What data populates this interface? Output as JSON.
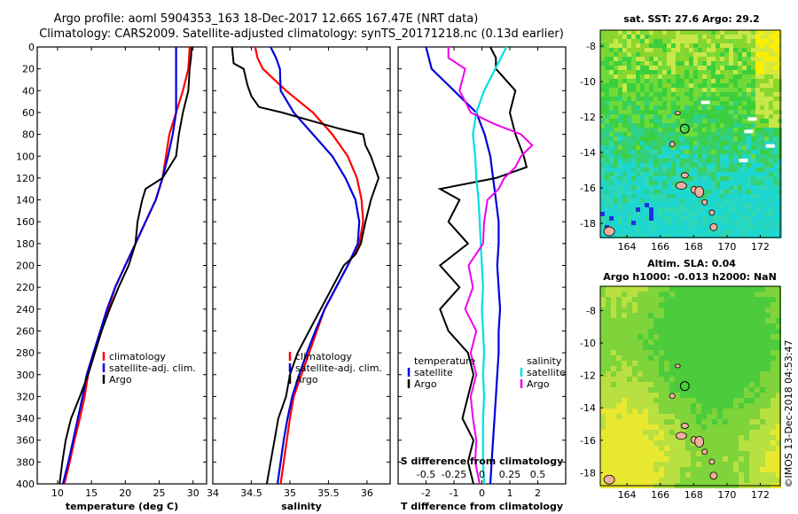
{
  "title": {
    "line1": "Argo profile: aoml 5904353_163 18-Dec-2017 12.66S 167.47E (NRT data)",
    "line2": "Climatology: CARS2009. Satellite-adjusted climatology: synTS_20171218.nc (0.13d earlier)"
  },
  "colors": {
    "climatology": "#ff0000",
    "satellite": "#0000dd",
    "argo": "#000000",
    "sat_salinity": "#00e0e0",
    "argo_salinity": "#ee00ee"
  },
  "chart_data": [
    {
      "type": "line",
      "id": "temperature",
      "xlabel": "temperature (deg C)",
      "ylabel": "",
      "xlim": [
        7,
        32
      ],
      "ylim": [
        400,
        0
      ],
      "xticks": [
        10,
        15,
        20,
        25,
        30
      ],
      "yticks": [
        0,
        20,
        40,
        60,
        80,
        100,
        120,
        140,
        160,
        180,
        200,
        220,
        240,
        260,
        280,
        300,
        320,
        340,
        360,
        380,
        400
      ],
      "legend": [
        "climatology",
        "satellite-adj. clim.",
        "Argo"
      ],
      "series": [
        {
          "name": "climatology",
          "color": "#ff0000",
          "depth": [
            0,
            20,
            40,
            60,
            80,
            100,
            120,
            140,
            160,
            180,
            200,
            220,
            240,
            260,
            280,
            300,
            320,
            340,
            360,
            380,
            400
          ],
          "values": [
            29.5,
            29.3,
            28.5,
            27.5,
            26.5,
            26,
            25.5,
            24.5,
            23,
            21.5,
            20,
            18.5,
            17.5,
            16.5,
            15.5,
            14.5,
            14,
            13.3,
            12.5,
            11.8,
            11
          ]
        },
        {
          "name": "satellite-adj. clim.",
          "color": "#0000dd",
          "depth": [
            0,
            20,
            40,
            60,
            80,
            100,
            120,
            140,
            160,
            180,
            200,
            220,
            240,
            260,
            280,
            300,
            320,
            340,
            360,
            380,
            400
          ],
          "values": [
            27.5,
            27.5,
            27.5,
            27.5,
            27,
            26.3,
            25.5,
            24.5,
            23,
            21.5,
            20,
            18.5,
            17.3,
            16.3,
            15.3,
            14.3,
            13.7,
            13,
            12.3,
            11.6,
            10.8
          ]
        },
        {
          "name": "Argo",
          "color": "#000000",
          "depth": [
            0,
            10,
            20,
            40,
            60,
            70,
            80,
            100,
            120,
            130,
            140,
            160,
            180,
            200,
            220,
            240,
            260,
            280,
            300,
            320,
            340,
            360,
            380,
            400
          ],
          "values": [
            29.8,
            29.7,
            29.5,
            29.3,
            28.5,
            28.2,
            27.9,
            27.5,
            25.5,
            23,
            22.5,
            21.8,
            21.5,
            20.5,
            19,
            17.7,
            16.5,
            15.5,
            14.5,
            13.3,
            12,
            11.2,
            10.7,
            10.3
          ]
        }
      ]
    },
    {
      "type": "line",
      "id": "salinity",
      "xlabel": "salinity",
      "ylabel": "",
      "xlim": [
        34,
        36.3
      ],
      "ylim": [
        400,
        0
      ],
      "xticks": [
        34,
        34.5,
        35,
        35.5,
        36
      ],
      "yticks": [],
      "legend": [
        "climatology",
        "satellite-adj. clim.",
        "Argo"
      ],
      "series": [
        {
          "name": "climatology",
          "color": "#ff0000",
          "depth": [
            0,
            10,
            20,
            40,
            60,
            80,
            100,
            120,
            140,
            160,
            180,
            200,
            220,
            240,
            260,
            280,
            300,
            320,
            340,
            360,
            380,
            400
          ],
          "values": [
            34.55,
            34.58,
            34.65,
            34.95,
            35.3,
            35.55,
            35.75,
            35.87,
            35.93,
            35.95,
            35.9,
            35.75,
            35.6,
            35.45,
            35.35,
            35.25,
            35.15,
            35.05,
            35,
            34.96,
            34.92,
            34.88
          ]
        },
        {
          "name": "satellite-adj. clim.",
          "color": "#0000dd",
          "depth": [
            0,
            10,
            20,
            40,
            60,
            80,
            100,
            120,
            140,
            160,
            180,
            200,
            220,
            240,
            260,
            280,
            300,
            320,
            340,
            360,
            380,
            400
          ],
          "values": [
            34.75,
            34.82,
            34.87,
            34.88,
            35.05,
            35.3,
            35.55,
            35.72,
            35.85,
            35.9,
            35.88,
            35.75,
            35.6,
            35.45,
            35.33,
            35.22,
            35.12,
            35.03,
            34.97,
            34.92,
            34.88,
            34.84
          ]
        },
        {
          "name": "Argo",
          "color": "#000000",
          "depth": [
            0,
            15,
            20,
            35,
            45,
            55,
            60,
            70,
            75,
            80,
            90,
            100,
            110,
            120,
            130,
            140,
            160,
            170,
            180,
            190,
            200,
            220,
            240,
            260,
            280,
            300,
            320,
            340,
            360,
            380,
            400
          ],
          "values": [
            34.25,
            34.27,
            34.4,
            34.45,
            34.5,
            34.6,
            34.9,
            35.4,
            35.65,
            35.95,
            35.98,
            36.05,
            36.1,
            36.15,
            36.1,
            36.05,
            35.98,
            35.95,
            35.92,
            35.85,
            35.7,
            35.55,
            35.4,
            35.25,
            35.1,
            35.0,
            34.95,
            34.85,
            34.8,
            34.75,
            34.7
          ]
        }
      ]
    },
    {
      "type": "line",
      "id": "difference",
      "xlabel": "T difference from climatology",
      "xlabel2": "S difference from climatology",
      "xlim": [
        -3,
        3
      ],
      "xlim2": [
        -0.75,
        0.75
      ],
      "ylim": [
        400,
        0
      ],
      "xticks": [
        -2,
        -1,
        0,
        1,
        2
      ],
      "xticks2": [
        -0.5,
        -0.25,
        0,
        0.25,
        0.5
      ],
      "xtick_labels": [
        "-2",
        "-1",
        "0",
        "1",
        "2"
      ],
      "xtick_labels2": [
        "-0.5",
        "-0.25",
        "0",
        "0.25",
        "0.5"
      ],
      "legend_temperature": {
        "title": "temperature",
        "items": [
          "satellite",
          "Argo"
        ]
      },
      "legend_salinity": {
        "title": "salinity",
        "items": [
          "satellite",
          "Argo"
        ]
      },
      "series": [
        {
          "name": "temperature satellite",
          "color": "#0000dd",
          "axis": "T",
          "depth": [
            0,
            20,
            40,
            60,
            80,
            100,
            120,
            140,
            160,
            180,
            200,
            220,
            240,
            260,
            280,
            300,
            320,
            340,
            360,
            380,
            400
          ],
          "values": [
            -2,
            -1.8,
            -1,
            -0.2,
            0.1,
            0.3,
            0.4,
            0.5,
            0.6,
            0.6,
            0.55,
            0.6,
            0.65,
            0.6,
            0.6,
            0.55,
            0.5,
            0.45,
            0.4,
            0.35,
            0.3
          ]
        },
        {
          "name": "temperature Argo",
          "color": "#000000",
          "axis": "T",
          "depth": [
            0,
            10,
            20,
            40,
            60,
            80,
            100,
            110,
            120,
            130,
            140,
            160,
            180,
            200,
            220,
            240,
            260,
            280,
            300,
            320,
            340,
            360,
            380,
            400
          ],
          "values": [
            0.3,
            0.5,
            0.5,
            1.2,
            1,
            1.2,
            1.5,
            1.6,
            0.5,
            -1.5,
            -0.8,
            -1.2,
            -0.5,
            -1.5,
            -0.8,
            -1.5,
            -1.2,
            -0.5,
            -0.3,
            -0.5,
            -0.7,
            -0.3,
            -0.5,
            -0.3
          ]
        },
        {
          "name": "salinity satellite",
          "color": "#00e0e0",
          "axis": "S",
          "depth": [
            0,
            20,
            40,
            60,
            80,
            100,
            120,
            140,
            160,
            180,
            200,
            220,
            240,
            260,
            280,
            300,
            320,
            340,
            360,
            380,
            400
          ],
          "values": [
            0.22,
            0.12,
            0.02,
            -0.05,
            -0.08,
            -0.06,
            -0.05,
            -0.03,
            -0.02,
            -0.01,
            0,
            0.01,
            0,
            0.01,
            0.02,
            0.01,
            0.02,
            0.01,
            0.01,
            0.01,
            0.02
          ]
        },
        {
          "name": "salinity Argo",
          "color": "#ee00ee",
          "axis": "S",
          "depth": [
            0,
            10,
            20,
            40,
            50,
            60,
            70,
            80,
            90,
            100,
            110,
            120,
            130,
            140,
            160,
            180,
            200,
            220,
            240,
            260,
            280,
            300,
            320,
            340,
            360,
            380,
            400
          ],
          "values": [
            -0.3,
            -0.3,
            -0.15,
            -0.2,
            -0.15,
            -0.1,
            0.1,
            0.35,
            0.45,
            0.35,
            0.3,
            0.2,
            0.15,
            0.05,
            0.02,
            0.01,
            -0.12,
            -0.08,
            -0.15,
            -0.05,
            -0.1,
            -0.05,
            -0.1,
            -0.08,
            -0.05,
            -0.06,
            -0.02
          ]
        }
      ]
    },
    {
      "type": "heatmap",
      "id": "sst_map",
      "title": "sat. SST: 27.6 Argo: 29.2",
      "xlim": [
        162.4,
        173.2
      ],
      "ylim": [
        -18.8,
        -7.1
      ],
      "xticks": [
        164,
        166,
        168,
        170,
        172
      ],
      "yticks": [
        -8,
        -10,
        -12,
        -14,
        -16,
        -18
      ],
      "marker": {
        "lon": 167.47,
        "lat": -12.66
      }
    },
    {
      "type": "heatmap",
      "id": "sla_map",
      "title": "Altim. SLA: 0.04",
      "subtitle": "Argo h1000: -0.013 h2000: NaN",
      "xlim": [
        162.4,
        173.2
      ],
      "ylim": [
        -18.8,
        -6.5
      ],
      "xticks": [
        164,
        166,
        168,
        170,
        172
      ],
      "yticks": [
        -8,
        -10,
        -12,
        -14,
        -16,
        -18
      ],
      "marker": {
        "lon": 167.47,
        "lat": -12.66
      }
    }
  ],
  "credit": "©IMOS 13-Dec-2018 04:53:47"
}
